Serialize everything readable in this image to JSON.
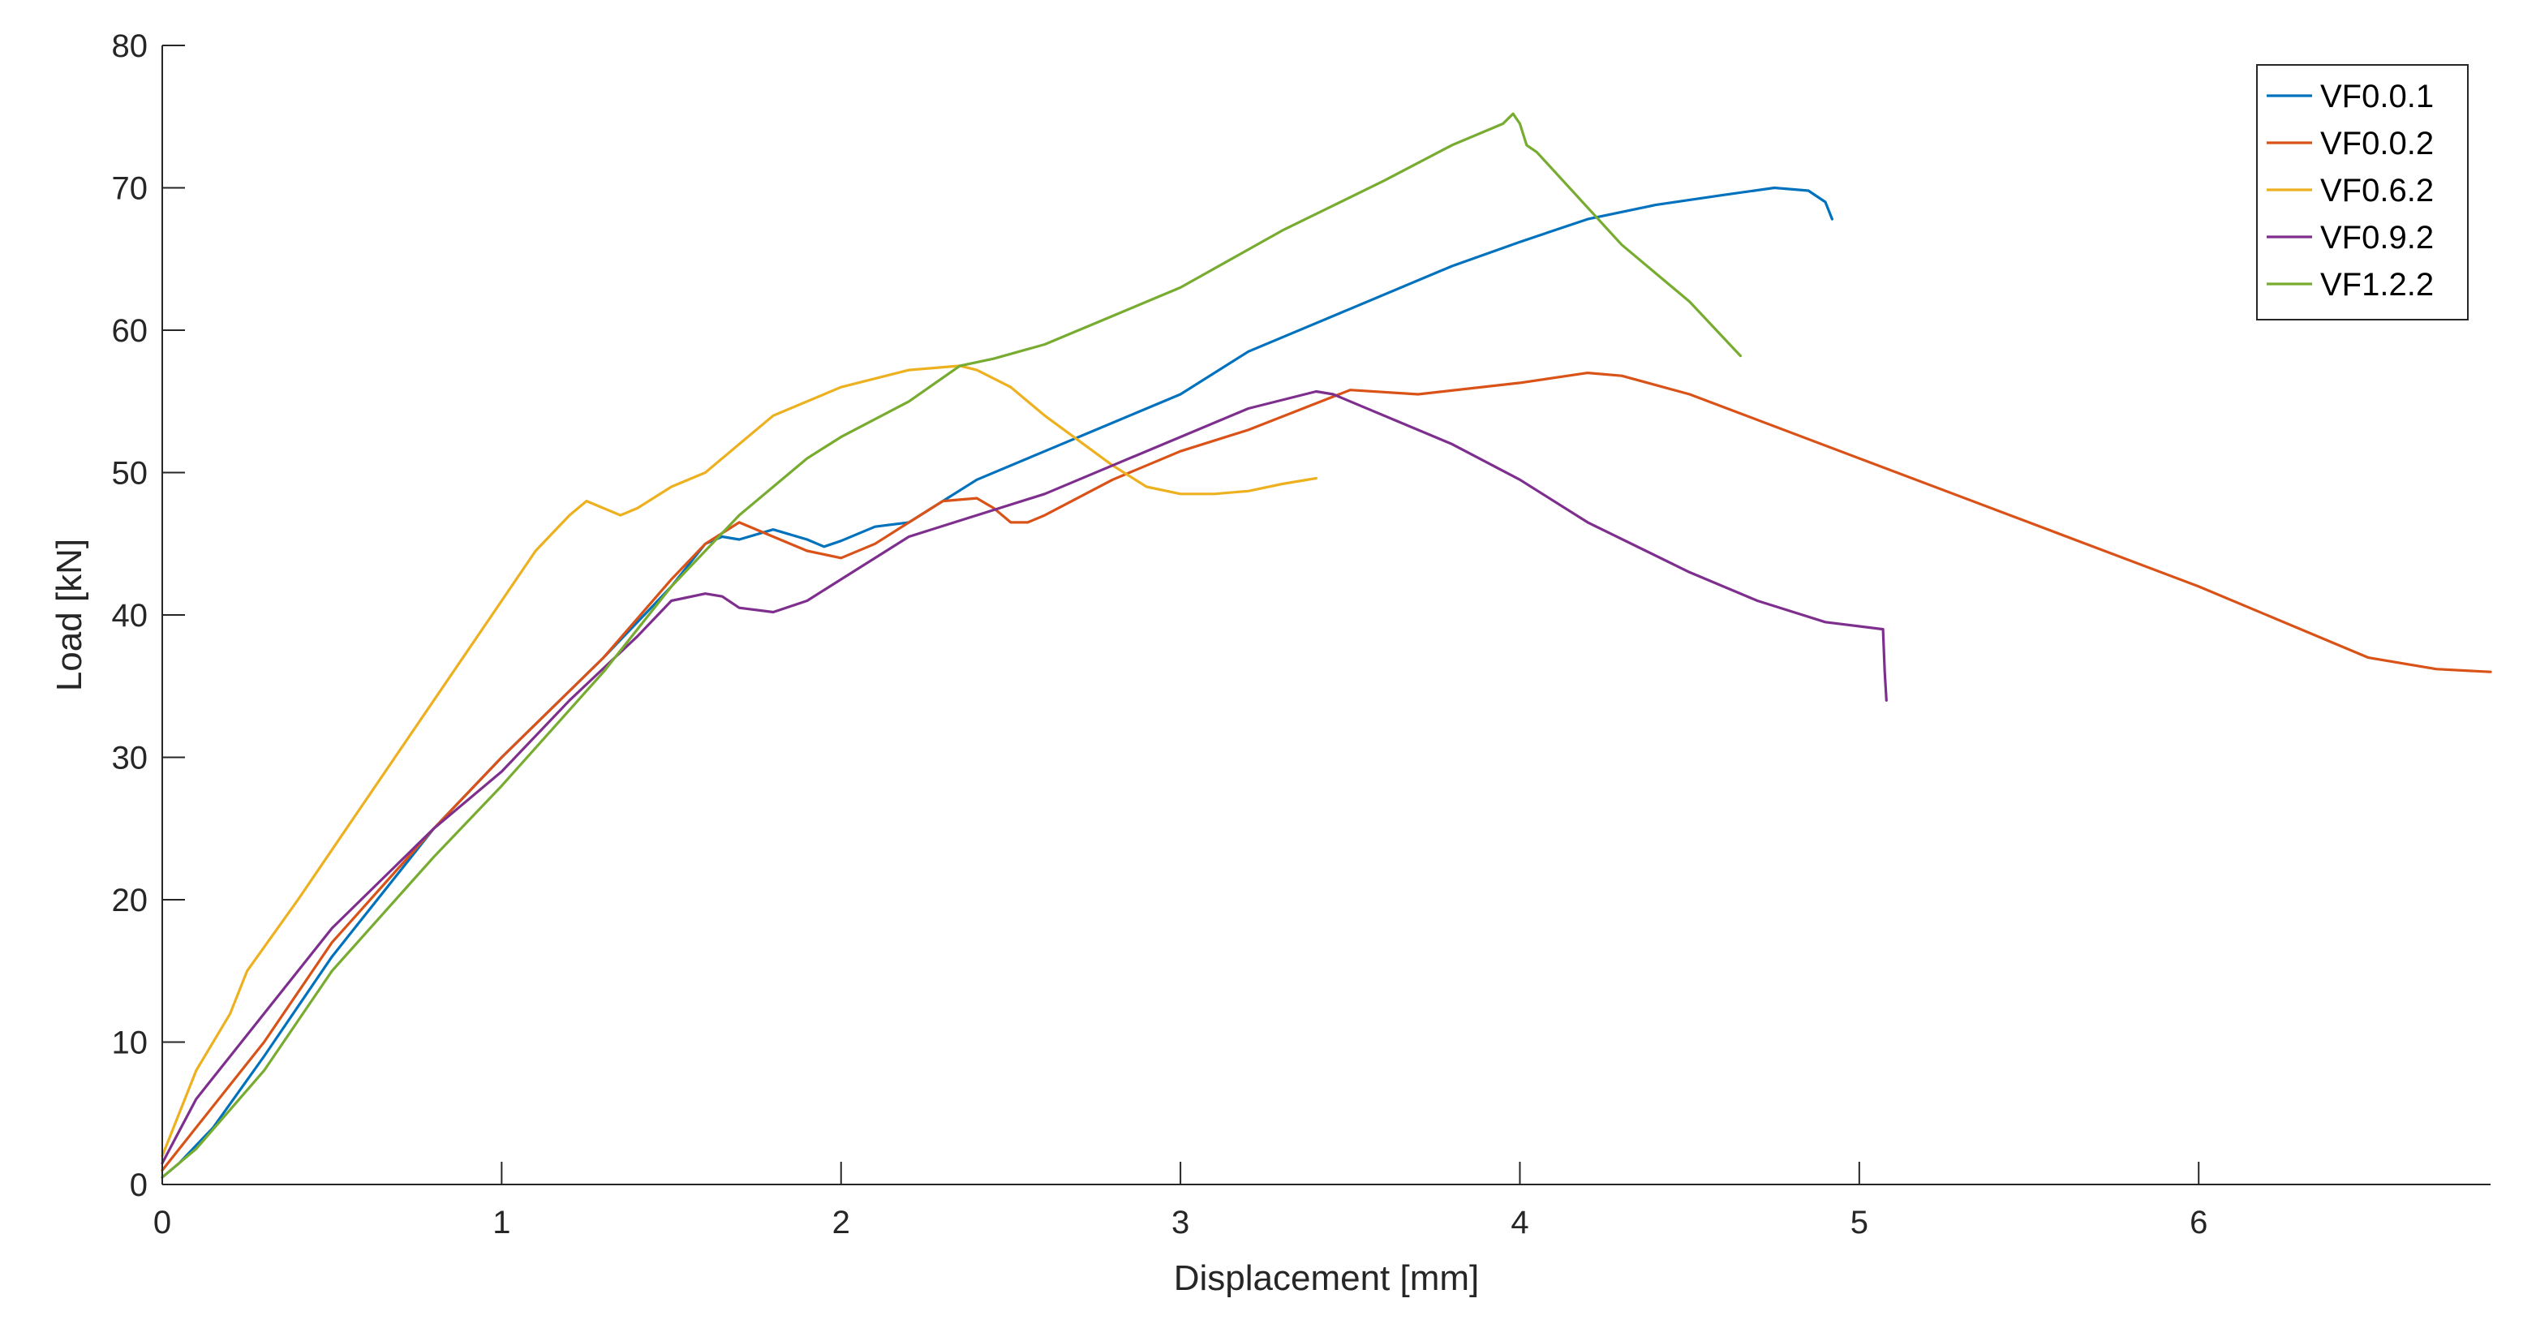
{
  "chart_data": {
    "type": "line",
    "title": "",
    "xlabel": "Displacement [mm]",
    "ylabel": "Load [kN]",
    "xlim": [
      0,
      6.86
    ],
    "ylim": [
      0,
      80
    ],
    "xticks": [
      "0",
      "1",
      "2",
      "3",
      "4",
      "5",
      "6"
    ],
    "yticks": [
      "0",
      "10",
      "20",
      "30",
      "40",
      "50",
      "60",
      "70",
      "80"
    ],
    "grid": false,
    "legend_position": "top-right",
    "series": [
      {
        "name": "VF0.0.1",
        "color": "#0072BD",
        "x": [
          0,
          0.05,
          0.15,
          0.3,
          0.5,
          0.8,
          1.0,
          1.3,
          1.5,
          1.6,
          1.65,
          1.7,
          1.8,
          1.9,
          1.95,
          2.0,
          2.1,
          2.2,
          2.4,
          2.6,
          2.8,
          3.0,
          3.2,
          3.5,
          3.8,
          4.0,
          4.2,
          4.4,
          4.6,
          4.75,
          4.85,
          4.9,
          4.92
        ],
        "y": [
          0.5,
          1.5,
          4,
          9,
          16,
          25,
          30,
          37,
          42,
          45,
          45.5,
          45.3,
          46,
          45.3,
          44.8,
          45.2,
          46.2,
          46.5,
          49.5,
          51.5,
          53.5,
          55.5,
          58.5,
          61.5,
          64.5,
          66.2,
          67.8,
          68.8,
          69.5,
          70,
          69.8,
          69,
          67.8
        ]
      },
      {
        "name": "VF0.0.2",
        "color": "#D95319",
        "x": [
          0,
          0.1,
          0.3,
          0.5,
          0.8,
          1.0,
          1.3,
          1.5,
          1.6,
          1.7,
          1.8,
          1.9,
          2.0,
          2.1,
          2.2,
          2.3,
          2.4,
          2.45,
          2.5,
          2.55,
          2.6,
          2.8,
          3.0,
          3.2,
          3.5,
          3.7,
          4.0,
          4.2,
          4.3,
          4.5,
          5.0,
          5.5,
          6.0,
          6.5,
          6.7,
          6.86
        ],
        "y": [
          1,
          4,
          10,
          17,
          25,
          30,
          37,
          42.5,
          45,
          46.5,
          45.5,
          44.5,
          44,
          45,
          46.5,
          48,
          48.2,
          47.5,
          46.5,
          46.5,
          47,
          49.5,
          51.5,
          53,
          55.8,
          55.5,
          56.3,
          57,
          56.8,
          55.5,
          51,
          46.5,
          42,
          37,
          36.2,
          36
        ]
      },
      {
        "name": "VF0.6.2",
        "color": "#EDB120",
        "x": [
          0,
          0.1,
          0.2,
          0.25,
          0.4,
          0.6,
          0.8,
          1.0,
          1.1,
          1.2,
          1.25,
          1.3,
          1.35,
          1.4,
          1.5,
          1.6,
          1.7,
          1.8,
          2.0,
          2.2,
          2.35,
          2.4,
          2.5,
          2.6,
          2.8,
          2.9,
          3.0,
          3.1,
          3.2,
          3.3,
          3.4
        ],
        "y": [
          2,
          8,
          12,
          15,
          20,
          27,
          34,
          41,
          44.5,
          47,
          48,
          47.5,
          47,
          47.5,
          49,
          50,
          52,
          54,
          56,
          57.2,
          57.5,
          57.2,
          56,
          54,
          50.5,
          49,
          48.5,
          48.5,
          48.7,
          49.2,
          49.6
        ]
      },
      {
        "name": "VF0.9.2",
        "color": "#7E2F8E",
        "x": [
          0,
          0.1,
          0.3,
          0.5,
          0.8,
          1.0,
          1.2,
          1.4,
          1.5,
          1.6,
          1.65,
          1.7,
          1.8,
          1.9,
          2.0,
          2.2,
          2.4,
          2.6,
          2.8,
          3.0,
          3.2,
          3.4,
          3.45,
          3.5,
          3.8,
          4.0,
          4.2,
          4.5,
          4.7,
          4.9,
          5.07,
          5.075,
          5.08
        ],
        "y": [
          1.5,
          6,
          12,
          18,
          25,
          29,
          34,
          38.5,
          41,
          41.5,
          41.3,
          40.5,
          40.2,
          41,
          42.5,
          45.5,
          47,
          48.5,
          50.5,
          52.5,
          54.5,
          55.7,
          55.5,
          55,
          52,
          49.5,
          46.5,
          43,
          41,
          39.5,
          39,
          36,
          34
        ]
      },
      {
        "name": "VF1.2.2",
        "color": "#77AC30",
        "x": [
          0,
          0.1,
          0.3,
          0.5,
          0.8,
          1.0,
          1.3,
          1.5,
          1.7,
          1.9,
          2.0,
          2.2,
          2.35,
          2.45,
          2.6,
          2.8,
          3.0,
          3.3,
          3.6,
          3.8,
          3.95,
          3.98,
          4.0,
          4.02,
          4.05,
          4.3,
          4.5,
          4.65
        ],
        "y": [
          0.5,
          2.5,
          8,
          15,
          23,
          28,
          36,
          42,
          47,
          51,
          52.5,
          55,
          57.5,
          58,
          59,
          61,
          63,
          67,
          70.5,
          73,
          74.5,
          75.2,
          74.5,
          73,
          72.5,
          66,
          62,
          58.2
        ]
      }
    ]
  }
}
